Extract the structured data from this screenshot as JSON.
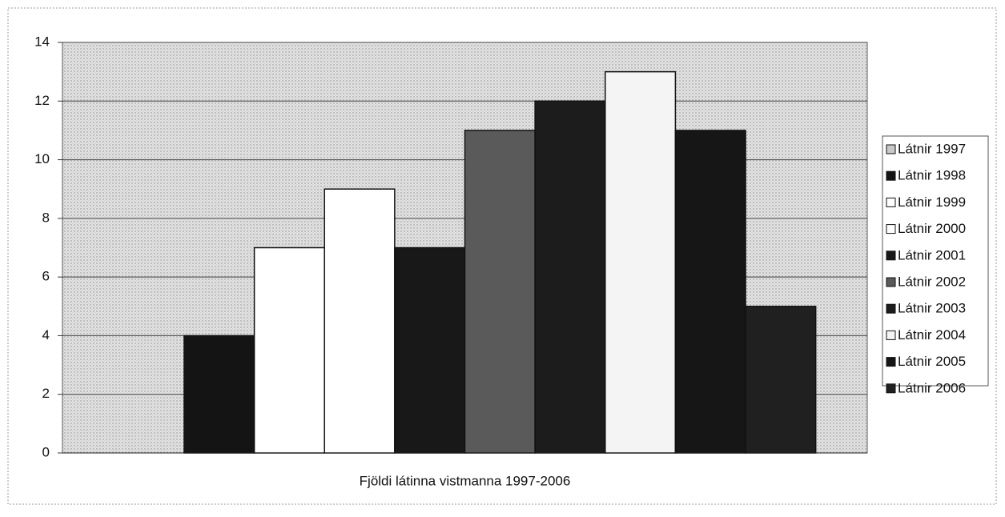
{
  "chart_data": {
    "type": "bar",
    "categories": [
      "Fjöldi látinna vistmanna 1997-2006"
    ],
    "series": [
      {
        "name": "Látnir 1997",
        "color": "#c8c8c8",
        "values": [
          0
        ]
      },
      {
        "name": "Látnir 1998",
        "color": "#141414",
        "values": [
          4
        ]
      },
      {
        "name": "Látnir 1999",
        "color": "#ffffff",
        "values": [
          7
        ]
      },
      {
        "name": "Látnir 2000",
        "color": "#ffffff",
        "values": [
          9
        ]
      },
      {
        "name": "Látnir 2001",
        "color": "#181818",
        "values": [
          7
        ]
      },
      {
        "name": "Látnir 2002",
        "color": "#5a5a5a",
        "values": [
          11
        ]
      },
      {
        "name": "Látnir 2003",
        "color": "#1c1c1c",
        "values": [
          12
        ]
      },
      {
        "name": "Látnir 2004",
        "color": "#f4f4f4",
        "values": [
          13
        ]
      },
      {
        "name": "Látnir 2005",
        "color": "#161616",
        "values": [
          11
        ]
      },
      {
        "name": "Látnir 2006",
        "color": "#202020",
        "values": [
          5
        ]
      }
    ],
    "ylim": [
      0,
      14
    ],
    "yticks": [
      0,
      2,
      4,
      6,
      8,
      10,
      12,
      14
    ],
    "grid": true,
    "legend": "right"
  }
}
